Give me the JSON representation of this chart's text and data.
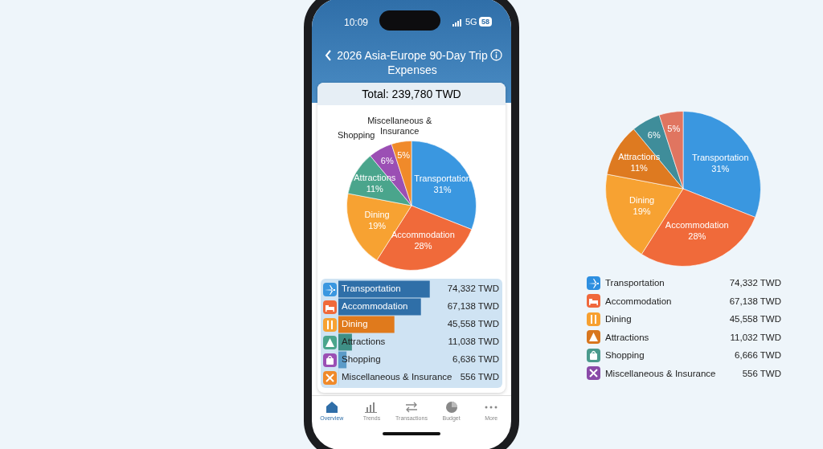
{
  "chart_data": [
    {
      "type": "pie",
      "title": "2026 Asia-Europe 90-Day Trip Expenses",
      "subtitle": "Total: 239,780 TWD",
      "categories": [
        "Transportation",
        "Accommodation",
        "Dining",
        "Attractions",
        "Shopping",
        "Miscellaneous & Insurance"
      ],
      "values": [
        31,
        28,
        19,
        11,
        6,
        5
      ],
      "colors": [
        "#3a97e0",
        "#f06a3a",
        "#f7a232",
        "#4aa58c",
        "#9b4fb4",
        "#f08a2a"
      ],
      "value_labels": [
        "31%",
        "28%",
        "19%",
        "11%",
        "6%",
        "5%"
      ],
      "legend": false,
      "annotations": [
        "10:09",
        "5G",
        "58",
        "Overview",
        "Trends",
        "Transactions",
        "Budget",
        "More"
      ]
    },
    {
      "type": "bar",
      "orientation": "horizontal",
      "tick_labels": false,
      "categories": [
        "Transportation",
        "Accommodation",
        "Dining",
        "Attractions",
        "Shopping",
        "Miscellaneous & Insurance"
      ],
      "values": [
        74332,
        67138,
        45558,
        11038,
        6636,
        556
      ],
      "value_labels": [
        "74,332 TWD",
        "67,138 TWD",
        "45,558 TWD",
        "11,038 TWD",
        "6,636 TWD",
        "556 TWD"
      ],
      "colors": [
        "#2f6fa8",
        "#2f6fa8",
        "#e07a1c",
        "#3f8f86",
        "#5b9bc8",
        "#b8d6ec"
      ]
    },
    {
      "type": "pie",
      "categories": [
        "Transportation",
        "Accommodation",
        "Dining",
        "Attractions",
        null,
        null
      ],
      "values": [
        31,
        28,
        19,
        11,
        6,
        5
      ],
      "colors": [
        "#3a97e0",
        "#f06a3a",
        "#f7a232",
        "#de7a20",
        "#3f8d9a",
        "#e07560"
      ],
      "value_labels": [
        "31%",
        "28%",
        "19%",
        "11%",
        "6%",
        "5%"
      ],
      "legend": false
    },
    {
      "type": "other",
      "categories": [
        "Transportation",
        "Accommodation",
        "Dining",
        "Attractions",
        "Shopping",
        "Miscellaneous & Insurance"
      ],
      "value_labels": [
        "74,332 TWD",
        "67,138 TWD",
        "45,558 TWD",
        "11,032 TWD",
        "6,666 TWD",
        "556 TWD"
      ],
      "colors": [
        "#2e8fe0",
        "#f0683c",
        "#f7a030",
        "#d8761e",
        "#4a9a8c",
        "#8a4aa8"
      ]
    }
  ]
}
